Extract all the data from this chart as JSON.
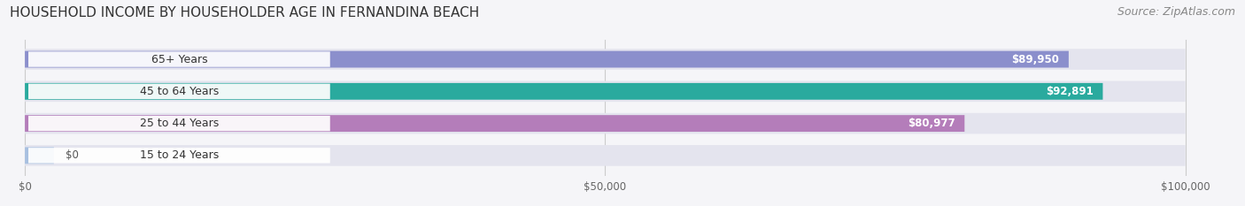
{
  "title": "HOUSEHOLD INCOME BY HOUSEHOLDER AGE IN FERNANDINA BEACH",
  "source": "Source: ZipAtlas.com",
  "categories": [
    "15 to 24 Years",
    "25 to 44 Years",
    "45 to 64 Years",
    "65+ Years"
  ],
  "values": [
    0,
    80977,
    92891,
    89950
  ],
  "bar_colors": [
    "#a8c0e0",
    "#b47dba",
    "#2aaa9e",
    "#8b8fcc"
  ],
  "bar_track_color": "#e4e4ee",
  "value_labels": [
    "$0",
    "$80,977",
    "$92,891",
    "$89,950"
  ],
  "xlim": [
    0,
    100000
  ],
  "xticks": [
    0,
    50000,
    100000
  ],
  "xtick_labels": [
    "$0",
    "$50,000",
    "$100,000"
  ],
  "background_color": "#f5f5f8",
  "title_fontsize": 11,
  "source_fontsize": 9
}
